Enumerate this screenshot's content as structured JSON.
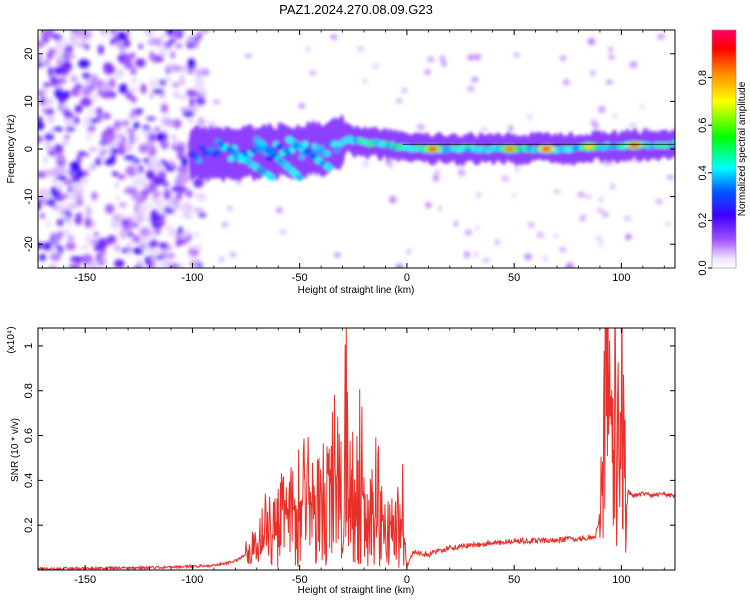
{
  "title": "PAZ1.2024.270.08.09.G23",
  "chart_data": [
    {
      "type": "heatmap",
      "xlabel": "Height of straight line (km)",
      "ylabel": "Frequency (Hz)",
      "xlim": [
        -172,
        125
      ],
      "ylim": [
        -25,
        25
      ],
      "xticks": [
        -150,
        -100,
        -50,
        0,
        50,
        100
      ],
      "yticks": [
        -20,
        -10,
        0,
        10,
        20
      ],
      "colorbar": {
        "label": "Normalized spectral amplitude",
        "range": [
          0,
          1
        ],
        "ticks": [
          "0.0",
          "0.2",
          "0.4",
          "0.6",
          "0.8"
        ]
      },
      "features": {
        "noise_region_x": [
          -172,
          -100
        ],
        "descending_streaks": [
          {
            "x_start": -88,
            "x_end": -63,
            "y_start": 1.5,
            "y_end": -6
          },
          {
            "x_start": -70,
            "x_end": -50,
            "y_start": 2,
            "y_end": -6
          },
          {
            "x_start": -55,
            "x_end": -36,
            "y_start": 2,
            "y_end": -4
          }
        ],
        "main_band": [
          {
            "x": -100,
            "y": -1
          },
          {
            "x": -80,
            "y": -1
          },
          {
            "x": -60,
            "y": -0.5
          },
          {
            "x": -40,
            "y": 0
          },
          {
            "x": -28,
            "y": 2
          },
          {
            "x": -10,
            "y": 1
          },
          {
            "x": 0,
            "y": 0
          },
          {
            "x": 20,
            "y": 0
          },
          {
            "x": 50,
            "y": 0
          },
          {
            "x": 75,
            "y": 0
          },
          {
            "x": 95,
            "y": 0.5
          },
          {
            "x": 125,
            "y": 1
          }
        ],
        "high_amplitude_peaks": [
          {
            "x": 12,
            "y": 0,
            "amplitude": 0.9
          },
          {
            "x": 48,
            "y": 0,
            "amplitude": 0.85
          },
          {
            "x": 65,
            "y": 0,
            "amplitude": 0.95
          },
          {
            "x": 85,
            "y": 0.5,
            "amplitude": 0.75
          },
          {
            "x": 106,
            "y": 0.8,
            "amplitude": 0.9
          }
        ]
      }
    },
    {
      "type": "line",
      "xlabel": "Height of straight line (km)",
      "ylabel": "SNR (10 * v/v)",
      "y_multiplier": "(x10⁴)",
      "xlim": [
        -172,
        125
      ],
      "ylim": [
        0,
        1.08
      ],
      "xticks": [
        -150,
        -100,
        -50,
        0,
        50,
        100
      ],
      "yticks": [
        0.2,
        0.4,
        0.6,
        0.8,
        1
      ],
      "series": [
        {
          "color": "#e8302a",
          "x": [
            -172,
            -140,
            -110,
            -90,
            -80,
            -72,
            -68,
            -65,
            -60,
            -55,
            -50,
            -45,
            -40,
            -35,
            -30,
            -28,
            -26,
            -22,
            -18,
            -14,
            -10,
            -5,
            -2,
            0,
            3,
            10,
            20,
            30,
            40,
            50,
            60,
            70,
            80,
            88,
            91,
            93,
            95,
            97,
            99,
            100,
            101,
            103,
            105,
            110,
            115,
            120,
            125
          ],
          "y": [
            0.005,
            0.008,
            0.012,
            0.02,
            0.04,
            0.09,
            0.13,
            0.2,
            0.25,
            0.22,
            0.3,
            0.35,
            0.27,
            0.42,
            0.35,
            0.63,
            0.3,
            0.46,
            0.2,
            0.32,
            0.16,
            0.18,
            0.25,
            0.02,
            0.08,
            0.07,
            0.1,
            0.11,
            0.12,
            0.13,
            0.13,
            0.135,
            0.14,
            0.15,
            0.3,
            0.95,
            0.45,
            0.9,
            0.4,
            1.06,
            0.6,
            0.35,
            0.33,
            0.34,
            0.33,
            0.34,
            0.33
          ]
        }
      ]
    }
  ]
}
